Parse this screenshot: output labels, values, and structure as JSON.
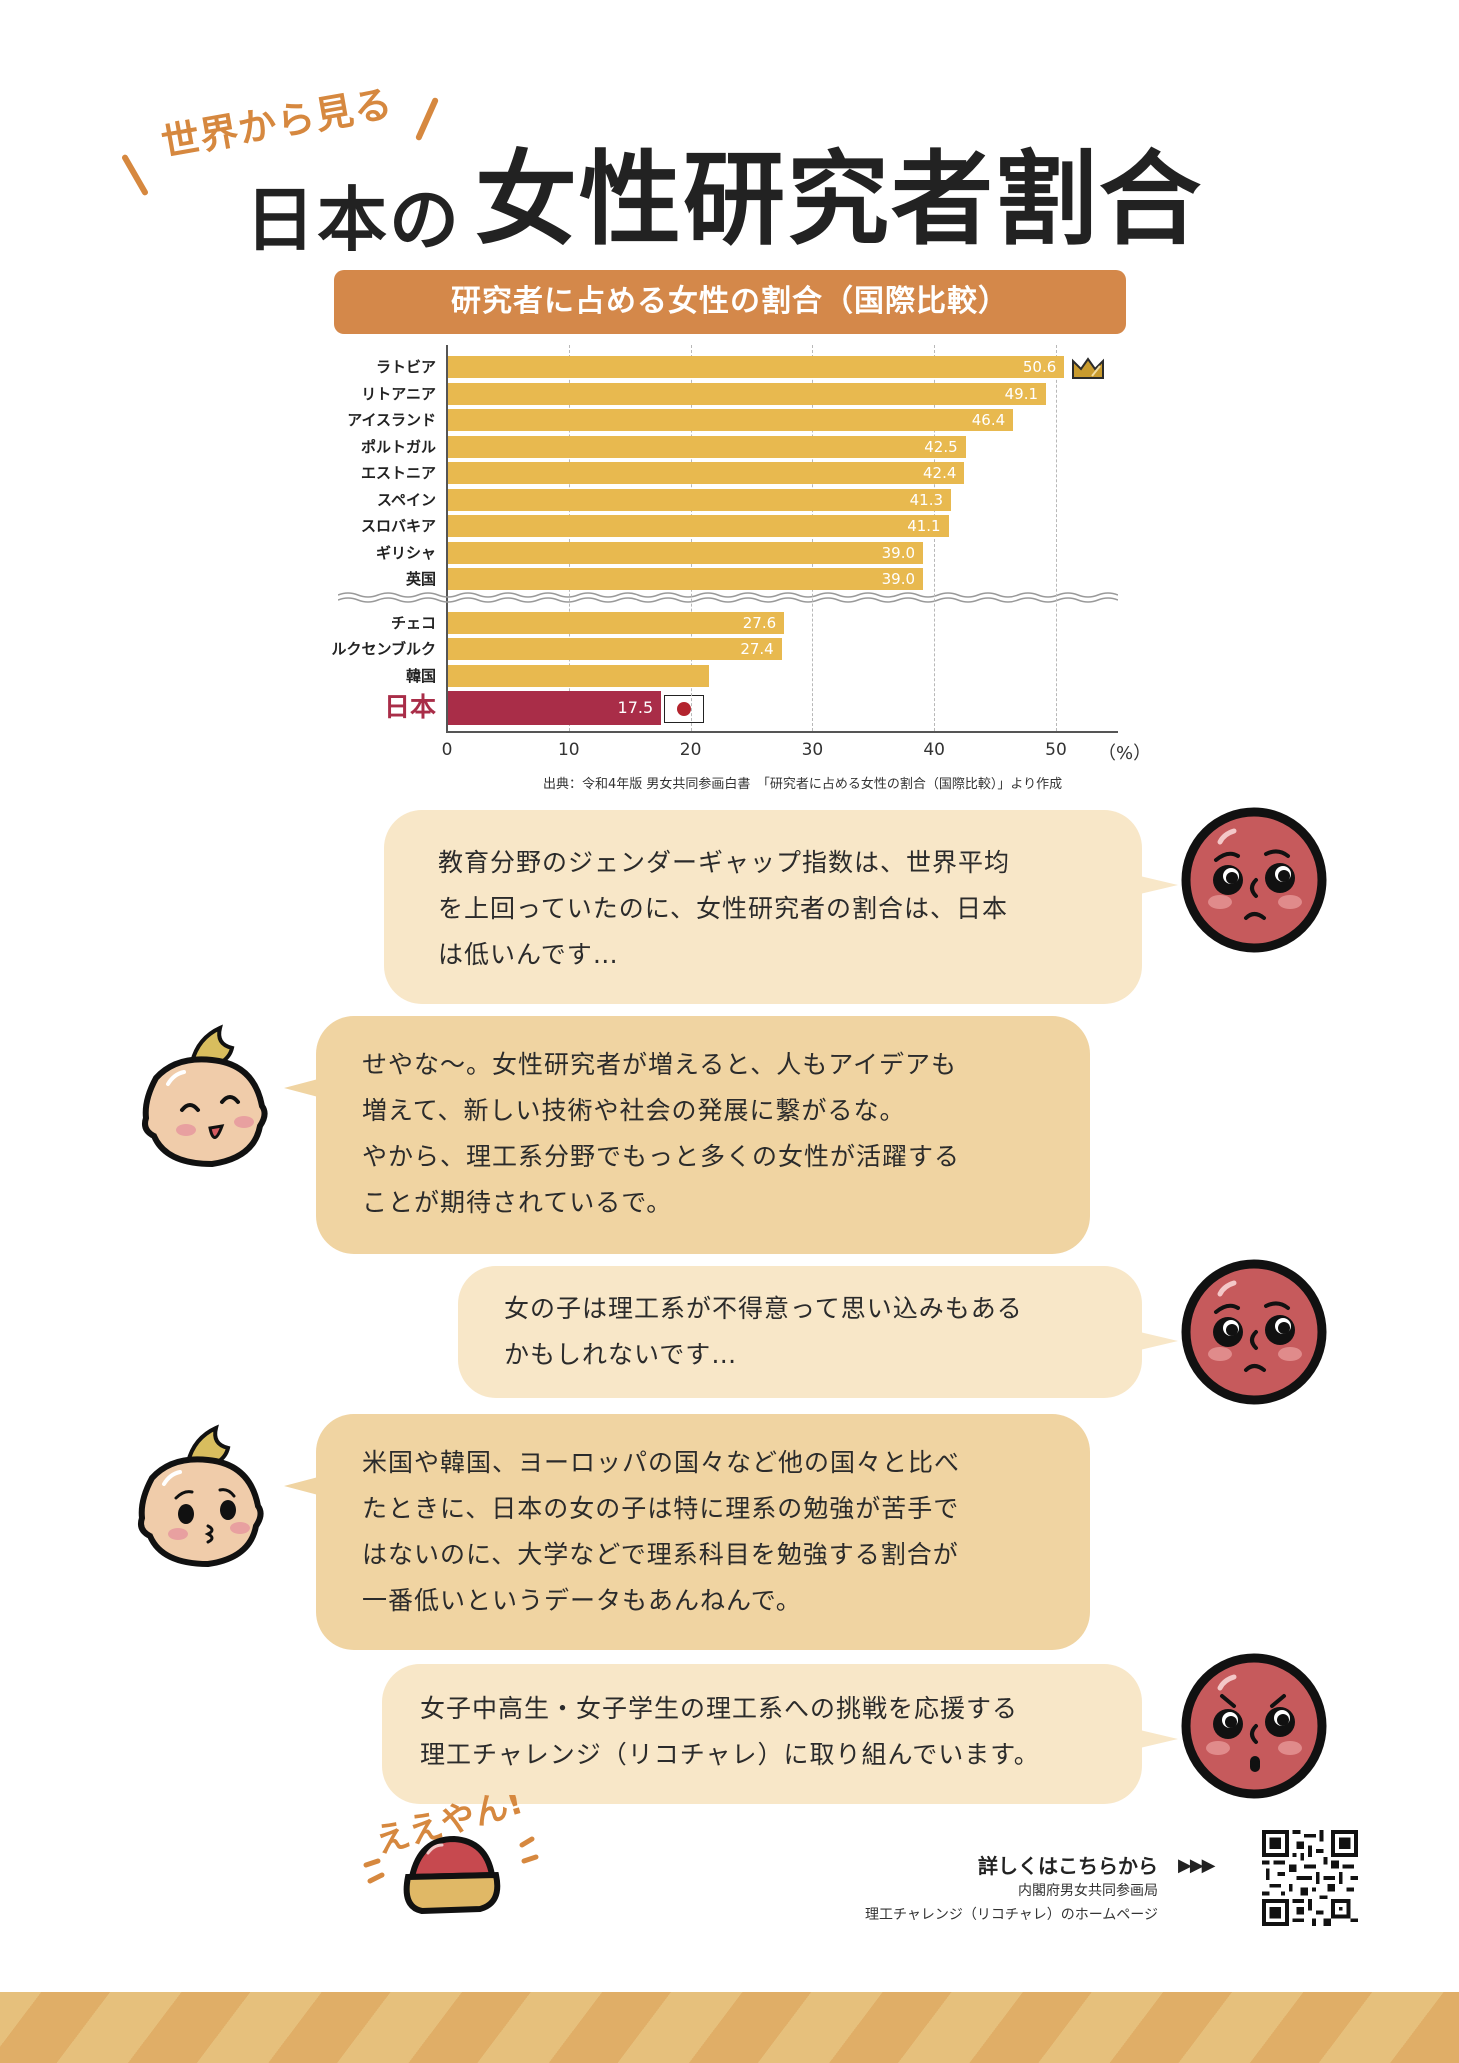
{
  "title": {
    "kicker": "世界から見る",
    "prefix": "日本の",
    "main": "女性研究者割合"
  },
  "chart": {
    "header": "研究者に占める女性の割合（国際比較）",
    "unit": "（%）",
    "source": "出典：令和4年版 男女共同参画白書　「研究者に占める女性の割合（国際比較）」より作成",
    "colors": {
      "bar": "#e8b94f",
      "highlight": "#a92d48",
      "header": "#d4884a"
    }
  },
  "chart_data": {
    "type": "bar",
    "orientation": "horizontal",
    "title": "研究者に占める女性の割合（国際比較）",
    "xlabel": "（%）",
    "ylabel": "",
    "xlim": [
      0,
      55
    ],
    "xticks": [
      0,
      10,
      20,
      30,
      40,
      50
    ],
    "grid": "vertical dashed",
    "axis_break_after": "英国",
    "categories": [
      "ラトビア",
      "リトアニア",
      "アイスランド",
      "ポルトガル",
      "エストニア",
      "スペイン",
      "スロバキア",
      "ギリシャ",
      "英国",
      "チェコ",
      "ルクセンブルク",
      "韓国",
      "日本"
    ],
    "values": [
      50.6,
      49.1,
      46.4,
      42.5,
      42.4,
      41.3,
      41.1,
      39.0,
      39.0,
      27.6,
      27.4,
      21.4,
      17.5
    ],
    "labels": [
      "50.6",
      "49.1",
      "46.4",
      "42.5",
      "42.4",
      "41.3",
      "41.1",
      "39.0",
      "39.0",
      "27.6",
      "27.4",
      "",
      "17.5"
    ],
    "highlight": "日本",
    "annotations": [
      "crown icon next to ラトビア",
      "Japanese flag next to 日本"
    ],
    "source": "出典：令和4年版 男女共同参画白書　「研究者に占める女性の割合（国際比較）」より作成"
  },
  "dialogue": [
    {
      "speaker": "red-character",
      "mood": "worried",
      "lines": [
        "教育分野のジェンダーギャップ指数は、世界平均",
        "を上回っていたのに、女性研究者の割合は、日本",
        "は低いんです…"
      ]
    },
    {
      "speaker": "baby-character",
      "mood": "happy",
      "lines": [
        "せやな～。女性研究者が増えると、人もアイデアも",
        "増えて、新しい技術や社会の発展に繋がるな。",
        "やから、理工系分野でもっと多くの女性が活躍する",
        "ことが期待されているで。"
      ]
    },
    {
      "speaker": "red-character",
      "mood": "worried",
      "lines": [
        "女の子は理工系が不得意って思い込みもある",
        "かもしれないです…"
      ]
    },
    {
      "speaker": "baby-character",
      "mood": "concerned",
      "lines": [
        "米国や韓国、ヨーロッパの国々など他の国々と比べ",
        "たときに、日本の女の子は特に理系の勉強が苦手で",
        "はないのに、大学などで理系科目を勉強する割合が",
        "一番低いというデータもあんねんで。"
      ]
    },
    {
      "speaker": "red-character",
      "mood": "determined",
      "lines": [
        "女子中高生・女子学生の理工系への挑戦を応援する",
        "理工チャレンジ（リコチャレ）に取り組んでいます。"
      ]
    }
  ],
  "footer": {
    "exclamation": "ええやん！",
    "link_heading": "詳しくはこちらから",
    "arrows": "▶▶▶",
    "org": "内閣府男女共同参画局",
    "page": "理工チャレンジ（リコチャレ）のホームページ",
    "qr_icon": "qr-code"
  }
}
